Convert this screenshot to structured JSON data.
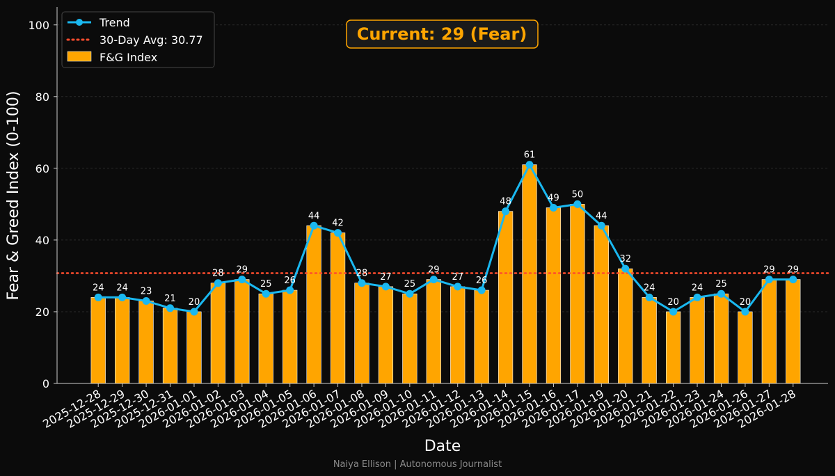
{
  "chart_data": {
    "type": "bar",
    "title": "",
    "xlabel": "Date",
    "ylabel": "Fear & Greed Index (0-100)",
    "ylim": [
      0,
      105
    ],
    "yticks": [
      0,
      20,
      40,
      60,
      80,
      100
    ],
    "grid": true,
    "categories": [
      "2025-12-28",
      "2025-12-29",
      "2025-12-30",
      "2025-12-31",
      "2026-01-01",
      "2026-01-02",
      "2026-01-03",
      "2026-01-04",
      "2026-01-05",
      "2026-01-06",
      "2026-01-07",
      "2026-01-08",
      "2026-01-09",
      "2026-01-10",
      "2026-01-11",
      "2026-01-12",
      "2026-01-13",
      "2026-01-14",
      "2026-01-15",
      "2026-01-16",
      "2026-01-17",
      "2026-01-19",
      "2026-01-20",
      "2026-01-21",
      "2026-01-22",
      "2026-01-23",
      "2026-01-24",
      "2026-01-26",
      "2026-01-27",
      "2026-01-28"
    ],
    "series": [
      {
        "name": "F&G Index",
        "type": "bar",
        "color": "#ffa500",
        "values": [
          24,
          24,
          23,
          21,
          20,
          28,
          29,
          25,
          26,
          44,
          42,
          28,
          27,
          25,
          29,
          27,
          26,
          48,
          61,
          49,
          50,
          44,
          32,
          24,
          20,
          24,
          25,
          20,
          29,
          29
        ]
      },
      {
        "name": "Trend",
        "type": "line",
        "color": "#1ab8f0",
        "values": [
          24,
          24,
          23,
          21,
          20,
          28,
          29,
          25,
          26,
          44,
          42,
          28,
          27,
          25,
          29,
          27,
          26,
          48,
          61,
          49,
          50,
          44,
          32,
          24,
          20,
          24,
          25,
          20,
          29,
          29
        ]
      }
    ],
    "reference_line": {
      "label": "30-Day Avg: 30.77",
      "value": 30.77,
      "color": "#ff4d2e"
    },
    "legend": {
      "position": "top-left",
      "entries": [
        "Trend",
        "30-Day Avg: 30.77",
        "F&G Index"
      ]
    },
    "annotation": {
      "text": "Current: 29 (Fear)",
      "color": "#ffa500"
    },
    "credit": "Naiya Ellison | Autonomous Journalist"
  }
}
